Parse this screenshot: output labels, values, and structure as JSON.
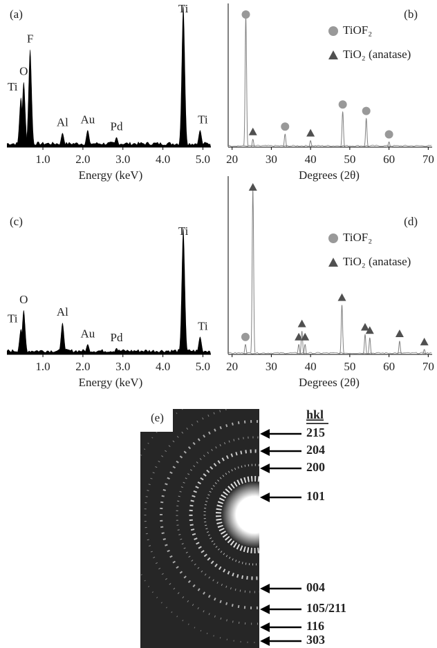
{
  "chart_data": [
    {
      "type": "eds",
      "panel": "(a)",
      "xlabel": "Energy (keV)",
      "xlim": [
        0.1,
        5.2
      ],
      "ylim": [
        0,
        100
      ],
      "xticks": [
        {
          "value": 1,
          "label": "1.0"
        },
        {
          "value": 2,
          "label": "2.0"
        },
        {
          "value": 3,
          "label": "3.0"
        },
        {
          "value": 4,
          "label": "4.0"
        },
        {
          "value": 5,
          "label": "5.0"
        }
      ],
      "x": [
        0.45,
        0.52,
        0.68,
        1.49,
        2.12,
        2.84,
        4.51,
        4.93
      ],
      "values": [
        35,
        46,
        69,
        10,
        12,
        7,
        100,
        12
      ],
      "labels": [
        "Ti",
        "O",
        "F",
        "Al",
        "Au",
        "Pd",
        "Ti",
        "Ti"
      ],
      "color": "#000000"
    },
    {
      "type": "xrd",
      "panel": "(b)",
      "xlabel": "Degrees (2θ)",
      "xlim": [
        19,
        71
      ],
      "ylim": [
        0,
        100
      ],
      "xticks": [
        20,
        30,
        40,
        50,
        60,
        70
      ],
      "color": "#808080",
      "series": [
        {
          "name": "TiOF₂",
          "marker": "circle",
          "color": "#999999",
          "x": [
            23.5,
            33.5,
            48.2,
            54.2,
            60
          ],
          "values": [
            100,
            10,
            27,
            22,
            4
          ]
        },
        {
          "name": "TiO₂ (anatase)",
          "marker": "triangle",
          "color": "#505050",
          "x": [
            25.3,
            40
          ],
          "values": [
            6,
            5
          ]
        }
      ]
    },
    {
      "type": "eds",
      "panel": "(c)",
      "xlabel": "Energy (keV)",
      "xlim": [
        0.1,
        5.2
      ],
      "ylim": [
        0,
        100
      ],
      "xticks": [
        {
          "value": 1,
          "label": "1.0"
        },
        {
          "value": 2,
          "label": "2.0"
        },
        {
          "value": 3,
          "label": "3.0"
        },
        {
          "value": 4,
          "label": "4.0"
        },
        {
          "value": 5,
          "label": "5.0"
        }
      ],
      "x": [
        0.45,
        0.52,
        1.49,
        2.12,
        2.84,
        4.51,
        4.93
      ],
      "values": [
        20,
        35,
        25,
        8,
        5,
        100,
        14
      ],
      "labels": [
        "Ti",
        "O",
        "Al",
        "Au",
        "Pd",
        "Ti",
        "Ti"
      ],
      "color": "#000000"
    },
    {
      "type": "xrd",
      "panel": "(d)",
      "xlabel": "Degrees (2θ)",
      "xlim": [
        19,
        71
      ],
      "ylim": [
        0,
        100
      ],
      "xticks": [
        20,
        30,
        40,
        50,
        60,
        70
      ],
      "color": "#808080",
      "series": [
        {
          "name": "TiOF₂",
          "marker": "circle",
          "color": "#999999",
          "x": [
            23.4
          ],
          "values": [
            6
          ]
        },
        {
          "name": "TiO₂ (anatase)",
          "marker": "triangle",
          "color": "#505050",
          "x": [
            25.3,
            37,
            37.8,
            38.6,
            48,
            53.9,
            55.1,
            62.7,
            69
          ],
          "values": [
            100,
            6,
            14,
            6,
            30,
            12,
            10,
            8,
            3
          ]
        }
      ]
    }
  ],
  "diffraction": {
    "panel": "(e)",
    "header": "hkl",
    "rings": [
      "215",
      "204",
      "200",
      "101",
      "004",
      "105/211",
      "116",
      "303"
    ]
  }
}
